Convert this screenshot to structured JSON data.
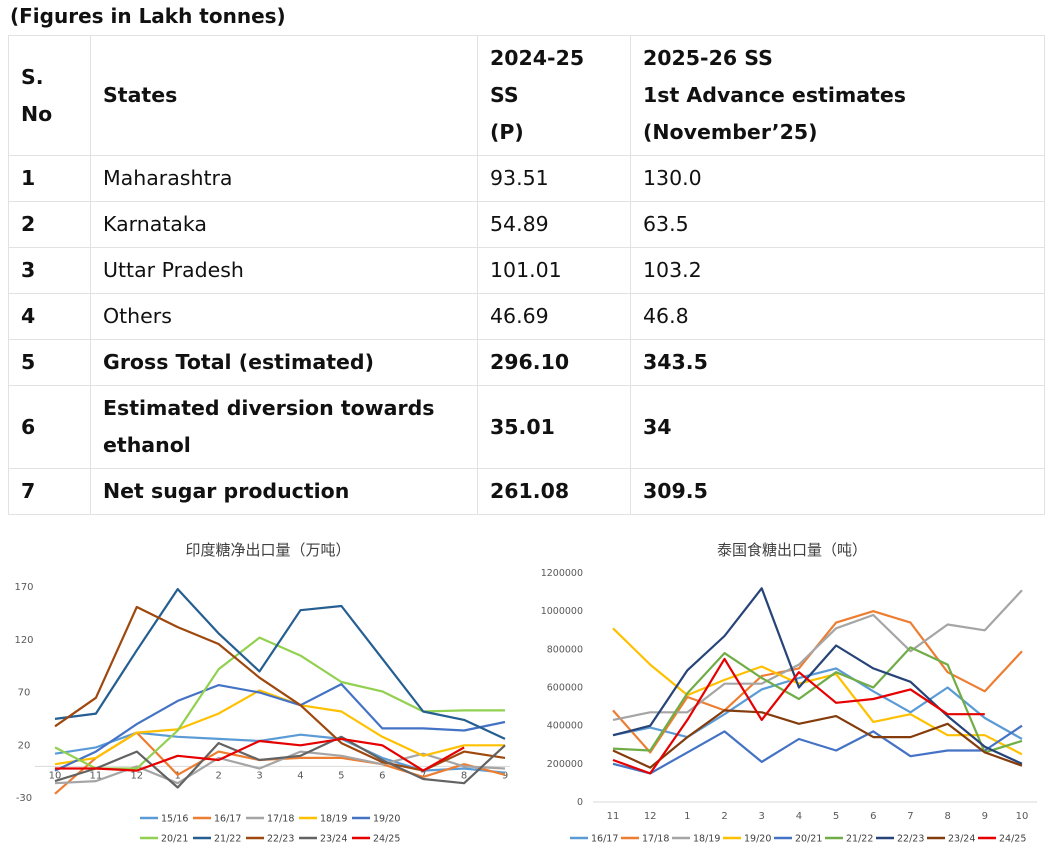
{
  "table": {
    "caption": "(Figures in Lakh tonnes)",
    "headers": {
      "sno": [
        "S.",
        "No"
      ],
      "states": "States",
      "col_2024": [
        "2024-25",
        "SS",
        "(P)"
      ],
      "col_2025": [
        "2025-26 SS",
        "1st Advance estimates",
        "(November’25)"
      ]
    },
    "rows": [
      {
        "sno": "1",
        "state": "Maharashtra",
        "v2024": "93.51",
        "v2025": "130.0"
      },
      {
        "sno": "2",
        "state": "Karnataka",
        "v2024": "54.89",
        "v2025": "63.5"
      },
      {
        "sno": "3",
        "state": "Uttar Pradesh",
        "v2024": "101.01",
        "v2025": "103.2"
      },
      {
        "sno": "4",
        "state": "Others",
        "v2024": "46.69",
        "v2025": "46.8"
      },
      {
        "sno": "5",
        "state": "Gross Total (estimated)",
        "v2024": "296.10",
        "v2025": "343.5"
      },
      {
        "sno": "6",
        "state": "Estimated diversion towards ethanol",
        "v2024": "35.01",
        "v2025": "34"
      },
      {
        "sno": "7",
        "state": "Net sugar production",
        "v2024": "261.08",
        "v2025": "309.5"
      }
    ]
  },
  "chart_data": [
    {
      "type": "line",
      "title": "印度糖净出口量（万吨）",
      "categories": [
        "10",
        "11",
        "12",
        "1",
        "2",
        "3",
        "4",
        "5",
        "6",
        "7",
        "8",
        "9"
      ],
      "ylim": [
        -30,
        170
      ],
      "yticks": [
        -30,
        20,
        70,
        120,
        170
      ],
      "series": [
        {
          "name": "15/16",
          "color": "#5b9bd5",
          "values": [
            12,
            18,
            32,
            28,
            26,
            24,
            30,
            26,
            8,
            -4,
            -2,
            -6
          ]
        },
        {
          "name": "16/17",
          "color": "#ed7d31",
          "values": [
            -26,
            8,
            32,
            -8,
            14,
            6,
            8,
            8,
            2,
            -10,
            2,
            -8
          ]
        },
        {
          "name": "17/18",
          "color": "#a5a5a5",
          "values": [
            -16,
            -14,
            0,
            -16,
            8,
            -2,
            14,
            10,
            2,
            12,
            0,
            -2
          ]
        },
        {
          "name": "18/19",
          "color": "#ffc000",
          "values": [
            2,
            8,
            32,
            35,
            50,
            72,
            58,
            52,
            28,
            10,
            20,
            20
          ]
        },
        {
          "name": "19/20",
          "color": "#4472c4",
          "values": [
            -4,
            14,
            40,
            62,
            77,
            70,
            58,
            78,
            36,
            36,
            34,
            42
          ]
        },
        {
          "name": "20/21",
          "color": "#92d050",
          "values": [
            18,
            -2,
            -2,
            34,
            92,
            122,
            105,
            80,
            71,
            52,
            53,
            53
          ]
        },
        {
          "name": "21/22",
          "color": "#255e91",
          "values": [
            45,
            50,
            110,
            168,
            126,
            90,
            148,
            152,
            102,
            52,
            44,
            26
          ]
        },
        {
          "name": "22/23",
          "color": "#9e480e",
          "values": [
            38,
            65,
            151,
            132,
            116,
            84,
            58,
            22,
            4,
            -4,
            14,
            8
          ]
        },
        {
          "name": "23/24",
          "color": "#636363",
          "values": [
            -14,
            -2,
            14,
            -20,
            22,
            6,
            10,
            28,
            6,
            -12,
            -16,
            20
          ]
        },
        {
          "name": "24/25",
          "color": "#e60000",
          "values": [
            -2,
            -2,
            -4,
            10,
            6,
            24,
            20,
            26,
            20,
            -4,
            18,
            null
          ]
        }
      ]
    },
    {
      "type": "line",
      "title": "泰国食糖出口量（吨）",
      "categories": [
        "11",
        "12",
        "1",
        "2",
        "3",
        "4",
        "5",
        "6",
        "7",
        "8",
        "9",
        "10"
      ],
      "ylim": [
        0,
        1200000
      ],
      "yticks": [
        0,
        200000,
        400000,
        600000,
        800000,
        1000000,
        1200000
      ],
      "series": [
        {
          "name": "16/17",
          "color": "#5b9bd5",
          "values": [
            350000,
            390000,
            340000,
            460000,
            590000,
            650000,
            700000,
            580000,
            470000,
            600000,
            440000,
            330000
          ]
        },
        {
          "name": "17/18",
          "color": "#ed7d31",
          "values": [
            480000,
            260000,
            550000,
            480000,
            660000,
            700000,
            940000,
            1000000,
            940000,
            680000,
            580000,
            790000
          ]
        },
        {
          "name": "18/19",
          "color": "#a5a5a5",
          "values": [
            430000,
            470000,
            470000,
            620000,
            620000,
            720000,
            910000,
            980000,
            790000,
            930000,
            900000,
            1110000
          ]
        },
        {
          "name": "19/20",
          "color": "#ffc000",
          "values": [
            910000,
            720000,
            560000,
            640000,
            710000,
            620000,
            670000,
            420000,
            460000,
            350000,
            350000,
            250000
          ]
        },
        {
          "name": "20/21",
          "color": "#4472c4",
          "values": [
            200000,
            150000,
            260000,
            370000,
            210000,
            330000,
            270000,
            370000,
            240000,
            270000,
            270000,
            400000
          ]
        },
        {
          "name": "21/22",
          "color": "#70ad47",
          "values": [
            280000,
            270000,
            570000,
            780000,
            650000,
            540000,
            680000,
            600000,
            810000,
            720000,
            260000,
            320000
          ]
        },
        {
          "name": "22/23",
          "color": "#264478",
          "values": [
            350000,
            400000,
            690000,
            870000,
            1120000,
            600000,
            820000,
            700000,
            630000,
            450000,
            290000,
            200000
          ]
        },
        {
          "name": "23/24",
          "color": "#843c0c",
          "values": [
            270000,
            180000,
            340000,
            480000,
            470000,
            410000,
            450000,
            340000,
            340000,
            410000,
            260000,
            190000
          ]
        },
        {
          "name": "24/25",
          "color": "#e60000",
          "values": [
            220000,
            150000,
            430000,
            750000,
            430000,
            680000,
            520000,
            540000,
            590000,
            460000,
            460000,
            null
          ]
        }
      ]
    }
  ]
}
